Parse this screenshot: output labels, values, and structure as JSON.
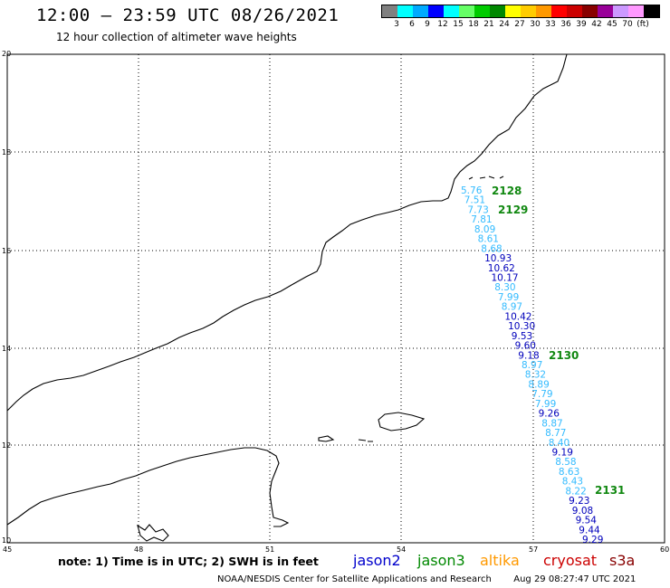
{
  "header": {
    "title": "12:00 – 23:59 UTC 08/26/2021",
    "subtitle": "12 hour collection of altimeter wave heights"
  },
  "colorbar": {
    "colors": [
      "#808080",
      "#00ffff",
      "#00aaff",
      "#0000ff",
      "#00ffff",
      "#66ff66",
      "#00cc00",
      "#008800",
      "#ffff00",
      "#ffcc00",
      "#ff9900",
      "#ff0000",
      "#cc0000",
      "#880000",
      "#990099",
      "#cc99ff",
      "#ff99ff",
      "#000000"
    ],
    "ticks": [
      "3",
      "6",
      "9",
      "12",
      "15",
      "18",
      "21",
      "24",
      "27",
      "30",
      "33",
      "36",
      "39",
      "42",
      "45",
      "70",
      "(ft)"
    ]
  },
  "map": {
    "lon_ticks": [
      "45",
      "48",
      "51",
      "54",
      "57",
      "60"
    ],
    "lat_ticks": [
      "20",
      "18",
      "16",
      "14",
      "12",
      "10"
    ],
    "track_labels": [
      "2128",
      "2129",
      "2130",
      "2131"
    ],
    "observations": [
      {
        "v": "5.76",
        "c": "#33bbff"
      },
      {
        "v": "7.51",
        "c": "#33bbff"
      },
      {
        "v": "7.73",
        "c": "#33bbff"
      },
      {
        "v": "7.81",
        "c": "#33bbff"
      },
      {
        "v": "8.09",
        "c": "#33bbff"
      },
      {
        "v": "8.61",
        "c": "#33bbff"
      },
      {
        "v": "8.68",
        "c": "#33bbff"
      },
      {
        "v": "10.93",
        "c": "#0000bb"
      },
      {
        "v": "10.62",
        "c": "#0000bb"
      },
      {
        "v": "10.17",
        "c": "#0000bb"
      },
      {
        "v": "8.30",
        "c": "#33bbff"
      },
      {
        "v": "7.99",
        "c": "#33bbff"
      },
      {
        "v": "8.97",
        "c": "#33bbff"
      },
      {
        "v": "10.42",
        "c": "#0000bb"
      },
      {
        "v": "10.30",
        "c": "#0000bb"
      },
      {
        "v": "9.53",
        "c": "#0000bb"
      },
      {
        "v": "9.60",
        "c": "#0000bb"
      },
      {
        "v": "9.18",
        "c": "#0000bb"
      },
      {
        "v": "8.97",
        "c": "#33bbff"
      },
      {
        "v": "8.32",
        "c": "#33bbff"
      },
      {
        "v": "8.89",
        "c": "#33bbff"
      },
      {
        "v": "7.79",
        "c": "#33bbff"
      },
      {
        "v": "7.99",
        "c": "#33bbff"
      },
      {
        "v": "9.26",
        "c": "#0000bb"
      },
      {
        "v": "8.87",
        "c": "#33bbff"
      },
      {
        "v": "8.77",
        "c": "#33bbff"
      },
      {
        "v": "8.40",
        "c": "#33bbff"
      },
      {
        "v": "9.19",
        "c": "#0000bb"
      },
      {
        "v": "8.58",
        "c": "#33bbff"
      },
      {
        "v": "8.63",
        "c": "#33bbff"
      },
      {
        "v": "8.43",
        "c": "#33bbff"
      },
      {
        "v": "8.22",
        "c": "#33bbff"
      },
      {
        "v": "9.23",
        "c": "#0000bb"
      },
      {
        "v": "9.08",
        "c": "#0000bb"
      },
      {
        "v": "9.54",
        "c": "#0000bb"
      },
      {
        "v": "9.44",
        "c": "#0000bb"
      },
      {
        "v": "9.29",
        "c": "#0000bb"
      }
    ]
  },
  "footer": {
    "note": "note: 1) Time is in UTC; 2) SWH is in feet",
    "satellites": [
      {
        "name": "jason2",
        "color": "#0000cc"
      },
      {
        "name": "jason3",
        "color": "#008800"
      },
      {
        "name": "altika",
        "color": "#ff9900"
      },
      {
        "name": "cryosat",
        "color": "#cc0000"
      },
      {
        "name": "s3a",
        "color": "#880000"
      }
    ],
    "credit": "NOAA/NESDIS Center for Satellite Applications and Research",
    "timestamp": "Aug 29 08:27:47 UTC 2021"
  }
}
